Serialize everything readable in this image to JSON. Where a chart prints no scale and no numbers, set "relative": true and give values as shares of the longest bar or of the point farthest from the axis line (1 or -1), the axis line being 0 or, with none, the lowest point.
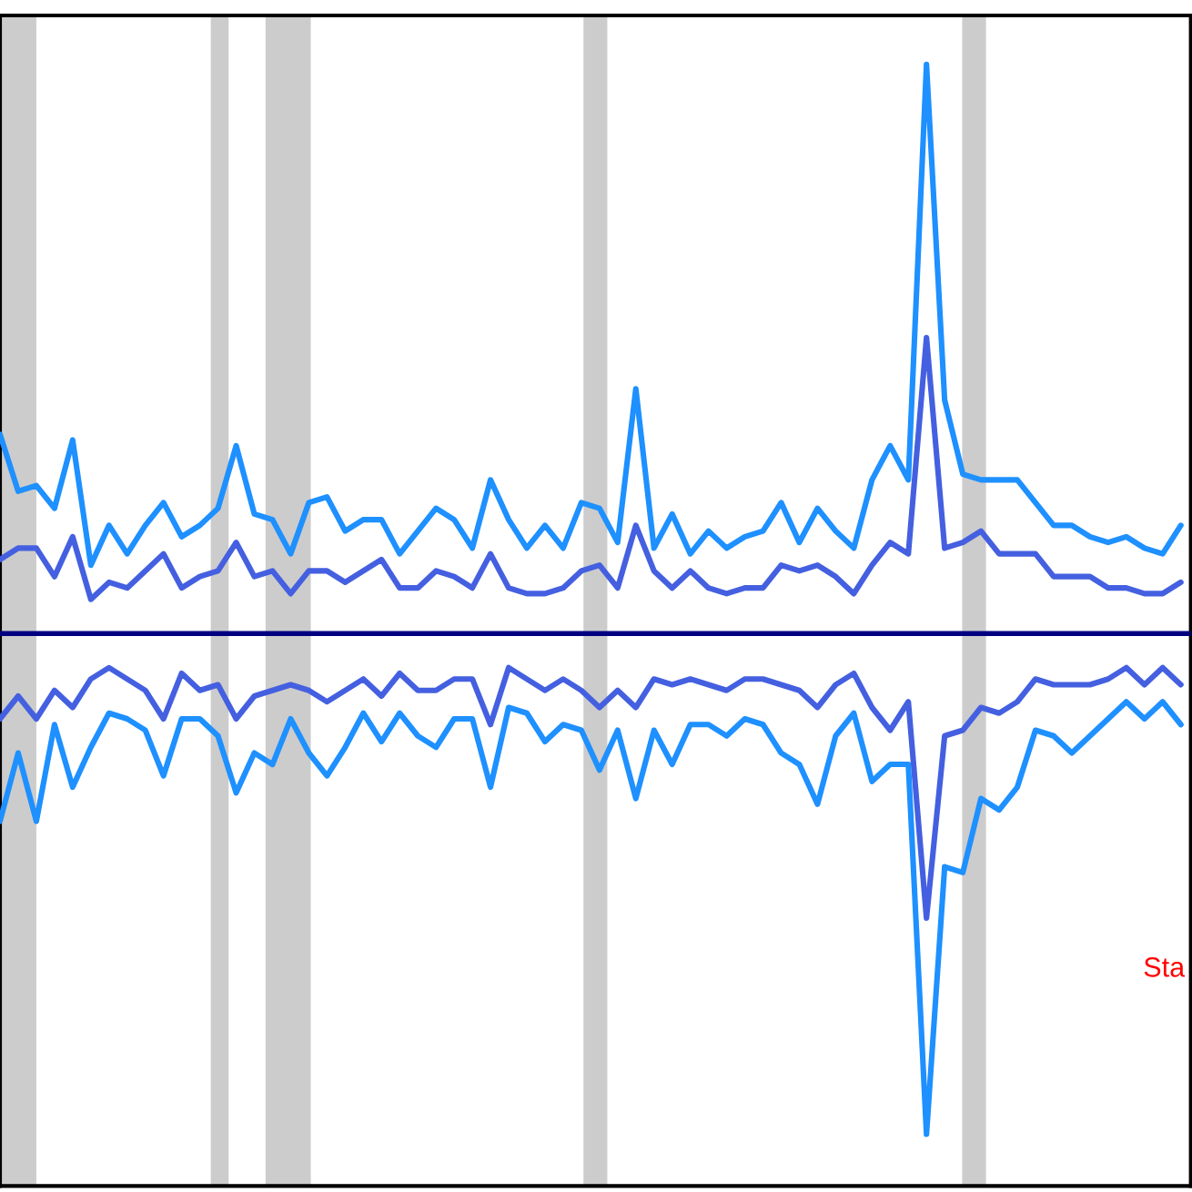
{
  "chart_data": {
    "type": "line",
    "relative": true,
    "categories": [
      null,
      null,
      null,
      null,
      null,
      null,
      null,
      null,
      null,
      null,
      null,
      null,
      null,
      null,
      null,
      null,
      null,
      null,
      null,
      null,
      null,
      null,
      null,
      null,
      null,
      null,
      null,
      null,
      null,
      null,
      null,
      null,
      null,
      null,
      null,
      null,
      null,
      null,
      null,
      null,
      null,
      null,
      null,
      null,
      null,
      null,
      null,
      null,
      null,
      null,
      null,
      null,
      null,
      null,
      null,
      null,
      null,
      null,
      null,
      null,
      null,
      null,
      null,
      null,
      null,
      null
    ],
    "series": [
      {
        "color": "#1e90ff",
        "values": [
          0.35,
          0.25,
          0.26,
          0.22,
          0.34,
          0.12,
          0.19,
          0.14,
          0.19,
          0.23,
          0.17,
          0.19,
          0.22,
          0.33,
          0.21,
          0.2,
          0.14,
          0.23,
          0.24,
          0.18,
          0.2,
          0.2,
          0.14,
          0.18,
          0.22,
          0.2,
          0.15,
          0.27,
          0.2,
          0.15,
          0.19,
          0.15,
          0.23,
          0.22,
          0.16,
          0.43,
          0.15,
          0.21,
          0.14,
          0.18,
          0.15,
          0.17,
          0.18,
          0.23,
          0.16,
          0.22,
          0.18,
          0.15,
          0.27,
          0.33,
          0.27,
          1,
          0.41,
          0.28,
          0.27,
          0.27,
          0.27,
          0.23,
          0.19,
          0.19,
          0.17,
          0.16,
          0.17,
          0.15,
          0.14,
          0.19
        ]
      },
      {
        "color": "#4460e0",
        "values": [
          0.13,
          0.15,
          0.15,
          0.1,
          0.17,
          0.06,
          0.09,
          0.08,
          0.11,
          0.14,
          0.08,
          0.1,
          0.11,
          0.16,
          0.1,
          0.11,
          0.07,
          0.11,
          0.11,
          0.09,
          0.11,
          0.13,
          0.08,
          0.08,
          0.11,
          0.1,
          0.08,
          0.14,
          0.08,
          0.07,
          0.07,
          0.08,
          0.11,
          0.12,
          0.08,
          0.19,
          0.11,
          0.08,
          0.11,
          0.08,
          0.07,
          0.08,
          0.08,
          0.12,
          0.11,
          0.12,
          0.1,
          0.07,
          0.12,
          0.16,
          0.14,
          0.52,
          0.15,
          0.16,
          0.18,
          0.14,
          0.14,
          0.14,
          0.1,
          0.1,
          0.1,
          0.08,
          0.08,
          0.07,
          0.07,
          0.09
        ]
      },
      {
        "color": "#4460e0",
        "values": [
          -0.15,
          -0.11,
          -0.15,
          -0.1,
          -0.13,
          -0.08,
          -0.06,
          -0.08,
          -0.1,
          -0.15,
          -0.07,
          -0.1,
          -0.09,
          -0.15,
          -0.11,
          -0.1,
          -0.09,
          -0.1,
          -0.12,
          -0.1,
          -0.08,
          -0.11,
          -0.07,
          -0.1,
          -0.1,
          -0.08,
          -0.08,
          -0.16,
          -0.06,
          -0.08,
          -0.1,
          -0.08,
          -0.1,
          -0.13,
          -0.1,
          -0.13,
          -0.08,
          -0.09,
          -0.08,
          -0.09,
          -0.1,
          -0.08,
          -0.08,
          -0.09,
          -0.1,
          -0.13,
          -0.09,
          -0.07,
          -0.13,
          -0.17,
          -0.12,
          -0.5,
          -0.18,
          -0.17,
          -0.13,
          -0.14,
          -0.12,
          -0.08,
          -0.09,
          -0.09,
          -0.09,
          -0.08,
          -0.06,
          -0.09,
          -0.06,
          -0.09
        ]
      },
      {
        "color": "#1e90ff",
        "values": [
          -0.33,
          -0.21,
          -0.33,
          -0.16,
          -0.27,
          -0.2,
          -0.14,
          -0.15,
          -0.17,
          -0.25,
          -0.15,
          -0.15,
          -0.18,
          -0.28,
          -0.21,
          -0.23,
          -0.15,
          -0.21,
          -0.25,
          -0.2,
          -0.14,
          -0.19,
          -0.14,
          -0.18,
          -0.2,
          -0.15,
          -0.15,
          -0.27,
          -0.13,
          -0.14,
          -0.19,
          -0.16,
          -0.17,
          -0.24,
          -0.17,
          -0.29,
          -0.17,
          -0.23,
          -0.16,
          -0.16,
          -0.18,
          -0.15,
          -0.16,
          -0.21,
          -0.23,
          -0.3,
          -0.18,
          -0.14,
          -0.26,
          -0.23,
          -0.23,
          -0.88,
          -0.41,
          -0.42,
          -0.29,
          -0.31,
          -0.27,
          -0.17,
          -0.18,
          -0.21,
          -0.18,
          -0.15,
          -0.12,
          -0.15,
          -0.12,
          -0.16
        ]
      }
    ],
    "ref_lines": [
      {
        "axis": "y",
        "value": 0,
        "color": "#000080"
      }
    ],
    "annotations": [
      "Sta"
    ],
    "legend": false,
    "marker": "none",
    "line_style": "solid"
  }
}
